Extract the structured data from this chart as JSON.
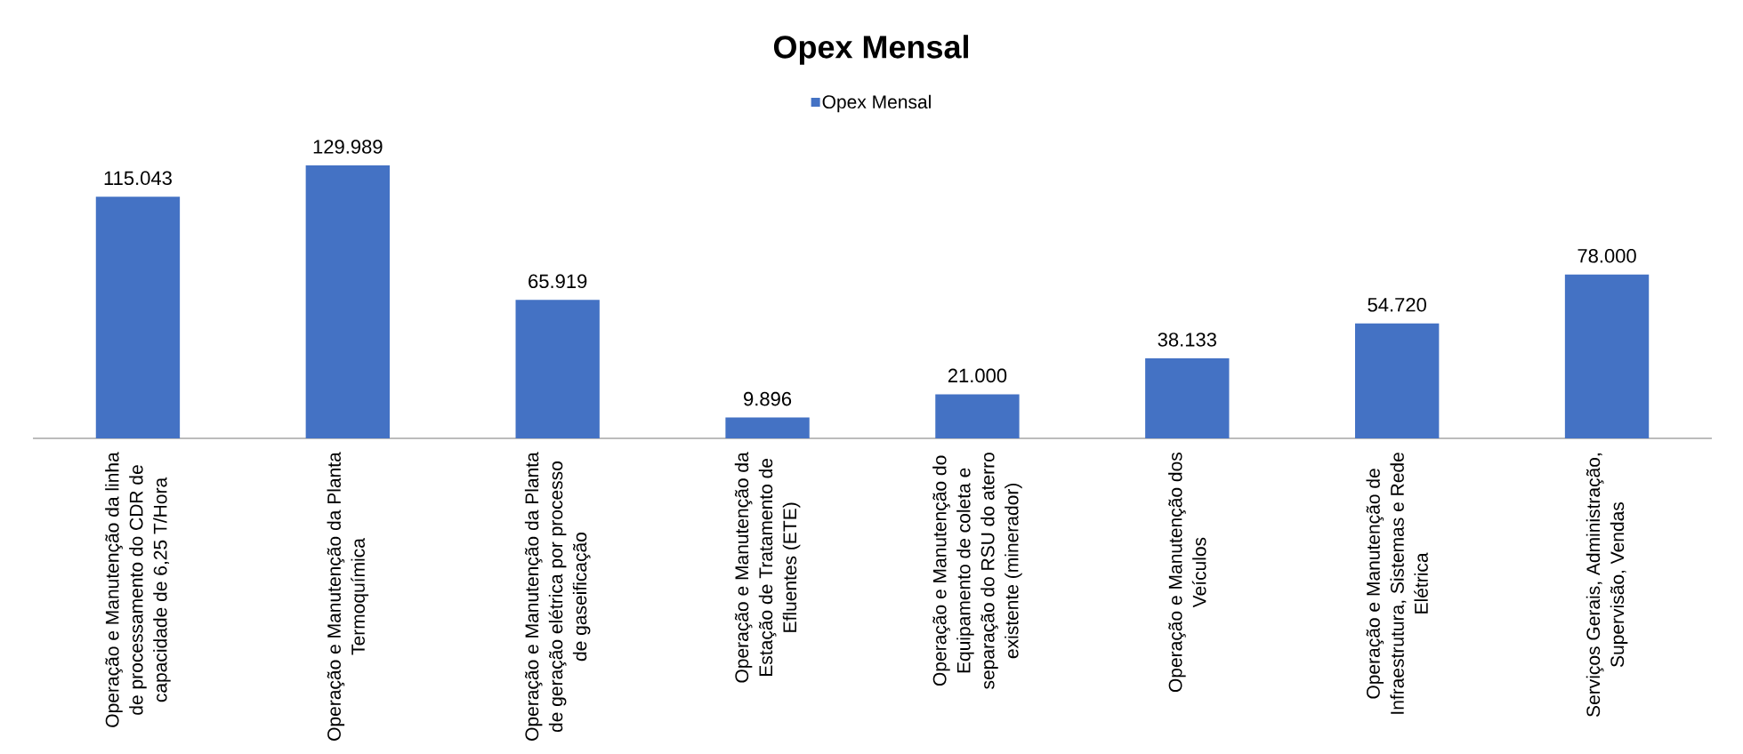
{
  "chart_data": {
    "type": "bar",
    "title": "Opex Mensal",
    "categories": [
      "Operação e Manutenção da linha de processamento do CDR de capacidade de 6,25 T/Hora",
      "Operação e Manutenção da Planta Termoquímica",
      "Operação e Manutenção da Planta de geração elétrica por processo de gaseificação",
      "Operação e Manutenção da Estação de Tratamento de Efluentes (ETE)",
      "Operação e Manutenção do Equipamento de coleta e separação do RSU do aterro existente (minerador)",
      "Operação e Manutenção dos Veículos",
      "Operação e Manutenção de Infraestrutura, Sistemas e Rede Elétrica",
      "Serviços Gerais, Administração, Supervisão, Vendas"
    ],
    "series": [
      {
        "name": "Opex Mensal",
        "color": "#4472c4",
        "values": [
          115043,
          129989,
          65919,
          9896,
          21000,
          38133,
          54720,
          78000
        ],
        "value_labels": [
          "115.043",
          "129.989",
          "65.919",
          "9.896",
          "21.000",
          "38.133",
          "54.720",
          "78.000"
        ]
      }
    ],
    "legend": "top",
    "tick_labels": "x"
  }
}
